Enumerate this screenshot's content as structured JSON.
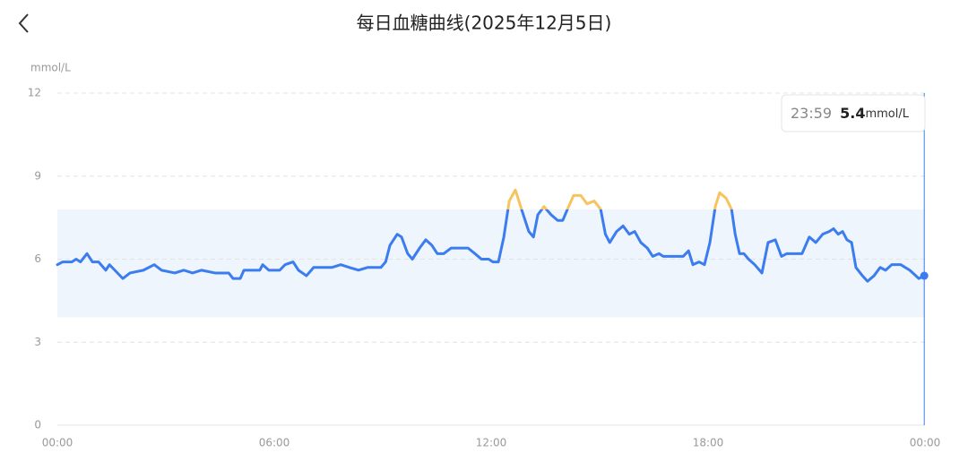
{
  "chart_data": {
    "type": "line",
    "title": "每日血糖曲线(2025年12月5日)",
    "y_label": "mmol/L",
    "x": [
      0,
      0.15,
      0.4,
      0.52,
      0.64,
      0.82,
      0.97,
      1.14,
      1.34,
      1.44,
      1.59,
      1.81,
      2.01,
      2.38,
      2.68,
      2.88,
      3.25,
      3.5,
      3.74,
      3.99,
      4.36,
      4.74,
      4.86,
      5.06,
      5.16,
      5.6,
      5.68,
      5.85,
      6.15,
      6.3,
      6.52,
      6.67,
      6.89,
      7.09,
      7.34,
      7.59,
      7.84,
      8.08,
      8.33,
      8.58,
      8.95,
      9.08,
      9.2,
      9.4,
      9.52,
      9.69,
      9.82,
      10.02,
      10.19,
      10.36,
      10.51,
      10.69,
      10.89,
      11.06,
      11.18,
      11.36,
      11.55,
      11.73,
      11.93,
      12.05,
      12.2,
      12.35,
      12.5,
      12.67,
      12.84,
      13.04,
      13.17,
      13.29,
      13.46,
      13.66,
      13.84,
      13.98,
      14.11,
      14.28,
      14.48,
      14.65,
      14.85,
      15.03,
      15.16,
      15.28,
      15.47,
      15.65,
      15.82,
      15.97,
      16.14,
      16.32,
      16.47,
      16.64,
      16.76,
      16.96,
      17.13,
      17.31,
      17.46,
      17.58,
      17.75,
      17.9,
      18.05,
      18.2,
      18.32,
      18.5,
      18.65,
      18.75,
      18.87,
      18.99,
      19.12,
      19.29,
      19.49,
      19.66,
      19.86,
      20.03,
      20.18,
      20.6,
      20.8,
      20.98,
      21.17,
      21.35,
      21.47,
      21.6,
      21.72,
      21.84,
      21.97,
      22.09,
      22.27,
      22.41,
      22.59,
      22.76,
      22.91,
      23.08,
      23.33,
      23.58,
      23.83,
      23.98
    ],
    "values": [
      5.8,
      5.9,
      5.9,
      6.0,
      5.9,
      6.2,
      5.9,
      5.9,
      5.6,
      5.8,
      5.6,
      5.3,
      5.5,
      5.6,
      5.8,
      5.6,
      5.5,
      5.6,
      5.5,
      5.6,
      5.5,
      5.5,
      5.3,
      5.3,
      5.6,
      5.6,
      5.8,
      5.6,
      5.6,
      5.8,
      5.9,
      5.6,
      5.4,
      5.7,
      5.7,
      5.7,
      5.8,
      5.7,
      5.6,
      5.7,
      5.7,
      5.9,
      6.5,
      6.9,
      6.8,
      6.2,
      6.0,
      6.4,
      6.7,
      6.5,
      6.2,
      6.2,
      6.4,
      6.4,
      6.4,
      6.4,
      6.2,
      6.0,
      6.0,
      5.9,
      5.9,
      6.8,
      8.1,
      8.5,
      7.8,
      7.0,
      6.8,
      7.6,
      7.9,
      7.6,
      7.4,
      7.4,
      7.8,
      8.3,
      8.3,
      8.0,
      8.1,
      7.8,
      6.9,
      6.6,
      7.0,
      7.2,
      6.9,
      7.0,
      6.6,
      6.4,
      6.1,
      6.2,
      6.1,
      6.1,
      6.1,
      6.1,
      6.3,
      5.8,
      5.9,
      5.8,
      6.6,
      7.9,
      8.4,
      8.2,
      7.8,
      6.9,
      6.2,
      6.2,
      6.0,
      5.8,
      5.5,
      6.6,
      6.7,
      6.1,
      6.2,
      6.2,
      6.8,
      6.6,
      6.9,
      7.0,
      7.1,
      6.9,
      7.0,
      6.7,
      6.6,
      5.7,
      5.4,
      5.2,
      5.4,
      5.7,
      5.6,
      5.8,
      5.8,
      5.6,
      5.3,
      5.4
    ],
    "color": "#3b7cf0",
    "high_color": "#f7c35f",
    "target_range": [
      3.9,
      7.8
    ],
    "range_color": "#eef5fd",
    "xlim": [
      0,
      24
    ],
    "xticks": [
      {
        "value": 0,
        "label": "00:00"
      },
      {
        "value": 6,
        "label": "06:00"
      },
      {
        "value": 12,
        "label": "12:00"
      },
      {
        "value": 18,
        "label": "18:00"
      },
      {
        "value": 24,
        "label": "00:00"
      }
    ],
    "ylim": [
      0,
      12
    ],
    "yticks": [
      0,
      3,
      6,
      9,
      12
    ],
    "grid": true,
    "tooltip": {
      "time": "23:59",
      "value": 5.4,
      "unit": "mmol/L"
    }
  }
}
